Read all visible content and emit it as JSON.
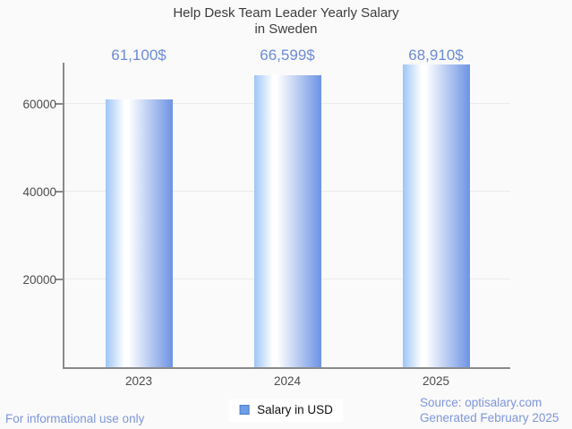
{
  "title_lines": [
    "Help Desk Team Leader Yearly Salary",
    "in Sweden"
  ],
  "chart_data": {
    "type": "bar",
    "title": "Help Desk Team Leader Yearly Salary in Sweden",
    "categories": [
      "2023",
      "2024",
      "2025"
    ],
    "values": [
      61100,
      66599,
      68910
    ],
    "value_labels": [
      "61,100$",
      "66,599$",
      "68,910$"
    ],
    "series": [
      {
        "name": "Salary in USD",
        "values": [
          61100,
          66599,
          68910
        ]
      }
    ],
    "xlabel": "",
    "ylabel": "",
    "ylim": [
      0,
      69400
    ],
    "yticks": [
      20000,
      40000,
      60000
    ],
    "ytick_labels": [
      "20000",
      "40000",
      "60000"
    ],
    "grid": true,
    "legend_position": "bottom-center"
  },
  "legend": {
    "items": [
      {
        "label": "Salary in USD",
        "swatch_fill": "#6d9dea",
        "swatch_border": "#4b7ec1"
      }
    ]
  },
  "footer": {
    "left_note": "For informational use only",
    "source_line1": "Source: optisalary.com",
    "source_line2": "Generated February 2025"
  },
  "colors": {
    "background": "#fafafa",
    "text_dark": "#3c3c3c",
    "text_axis": "#4c4c4c",
    "axis": "#8a8a8a",
    "grid": "#ebebeb",
    "accent_text": "#6b8bd6",
    "footer_link": "#7d95dc",
    "bar_gradient_left": "#9ec5f7",
    "bar_gradient_mid": "#ffffff",
    "bar_gradient_right": "#6d93e4",
    "legend_fill": "#6d9dea",
    "legend_border": "#4b7ec1"
  }
}
